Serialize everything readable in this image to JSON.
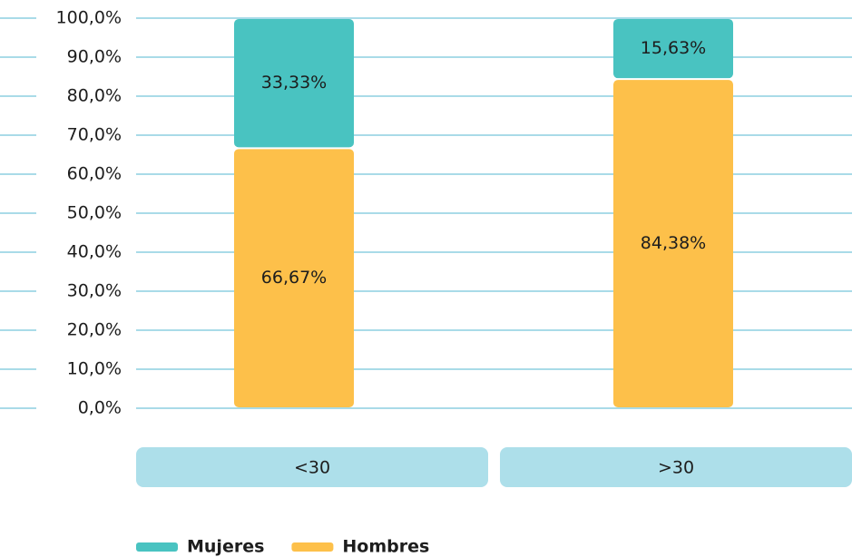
{
  "chart_data": {
    "type": "stacked_bar",
    "categories": [
      "<30",
      ">30"
    ],
    "series": [
      {
        "name": "Mujeres",
        "color": "#49c3c1",
        "values": [
          33.33,
          15.63
        ],
        "value_labels": [
          "33,33%",
          "15,63%"
        ]
      },
      {
        "name": "Hombres",
        "color": "#fdc04a",
        "values": [
          66.67,
          84.38
        ],
        "value_labels": [
          "66,67%",
          "84,38%"
        ]
      }
    ],
    "ylim": [
      0,
      100
    ],
    "yticks": [
      {
        "value": 0,
        "label": "0,0%"
      },
      {
        "value": 10,
        "label": "10,0%"
      },
      {
        "value": 20,
        "label": "20,0%"
      },
      {
        "value": 30,
        "label": "30,0%"
      },
      {
        "value": 40,
        "label": "40,0%"
      },
      {
        "value": 50,
        "label": "50,0%"
      },
      {
        "value": 60,
        "label": "60,0%"
      },
      {
        "value": 70,
        "label": "70,0%"
      },
      {
        "value": 80,
        "label": "80,0%"
      },
      {
        "value": 90,
        "label": "90,0%"
      },
      {
        "value": 100,
        "label": "100,0%"
      }
    ],
    "grid": true
  }
}
